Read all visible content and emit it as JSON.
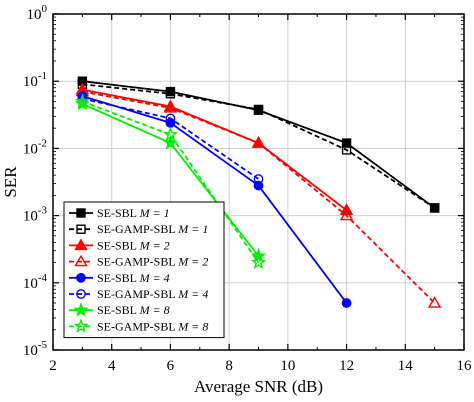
{
  "chart_data": {
    "type": "line",
    "xlabel": "Average SNR (dB)",
    "ylabel": "SER",
    "xlim": [
      2,
      16
    ],
    "ylim": [
      1e-05,
      1
    ],
    "yscale": "log",
    "grid": true,
    "legend_placement": "bottom-left",
    "x_ticks": [
      "2",
      "4",
      "6",
      "8",
      "10",
      "12",
      "14",
      "16"
    ],
    "y_ticks": [
      {
        "base": "10",
        "exp": "0"
      },
      {
        "base": "10",
        "exp": "-1"
      },
      {
        "base": "10",
        "exp": "-2"
      },
      {
        "base": "10",
        "exp": "-3"
      },
      {
        "base": "10",
        "exp": "-4"
      },
      {
        "base": "10",
        "exp": "-5"
      }
    ],
    "series": [
      {
        "name": "SE-SBL",
        "param": "M = 1",
        "color": "#000000",
        "marker": "square-filled",
        "dash": false,
        "x": [
          3,
          6,
          9,
          12,
          15
        ],
        "y": [
          0.1,
          0.07,
          0.037,
          0.012,
          0.0013
        ]
      },
      {
        "name": "SE-GAMP-SBL",
        "param": "M = 1",
        "color": "#000000",
        "marker": "square-open",
        "dash": true,
        "x": [
          3,
          6,
          9,
          12,
          15
        ],
        "y": [
          0.09,
          0.065,
          0.038,
          0.0095,
          0.0013
        ]
      },
      {
        "name": "SE-SBL",
        "param": "M = 2",
        "color": "#ff0000",
        "marker": "triangle-filled",
        "dash": false,
        "x": [
          3,
          6,
          9,
          12
        ],
        "y": [
          0.075,
          0.042,
          0.012,
          0.0012
        ]
      },
      {
        "name": "SE-GAMP-SBL",
        "param": "M = 2",
        "color": "#ff0000",
        "marker": "triangle-open",
        "dash": true,
        "x": [
          3,
          6,
          9,
          12,
          15
        ],
        "y": [
          0.07,
          0.04,
          0.012,
          0.001,
          5e-05
        ]
      },
      {
        "name": "SE-SBL",
        "param": "M = 4",
        "color": "#0000ff",
        "marker": "circle-filled",
        "dash": false,
        "x": [
          3,
          6,
          9,
          12
        ],
        "y": [
          0.06,
          0.024,
          0.0028,
          5e-05
        ]
      },
      {
        "name": "SE-GAMP-SBL",
        "param": "M = 4",
        "color": "#0000ff",
        "marker": "circle-open",
        "dash": true,
        "x": [
          3,
          6,
          9
        ],
        "y": [
          0.055,
          0.028,
          0.0035
        ]
      },
      {
        "name": "SE-SBL",
        "param": "M = 8",
        "color": "#00ee00",
        "marker": "star-filled",
        "dash": false,
        "x": [
          3,
          6,
          9
        ],
        "y": [
          0.046,
          0.012,
          0.00025
        ]
      },
      {
        "name": "SE-GAMP-SBL",
        "param": "M = 8",
        "color": "#00ee00",
        "marker": "star-open",
        "dash": true,
        "x": [
          3,
          6,
          9
        ],
        "y": [
          0.05,
          0.016,
          0.0002
        ]
      }
    ]
  }
}
